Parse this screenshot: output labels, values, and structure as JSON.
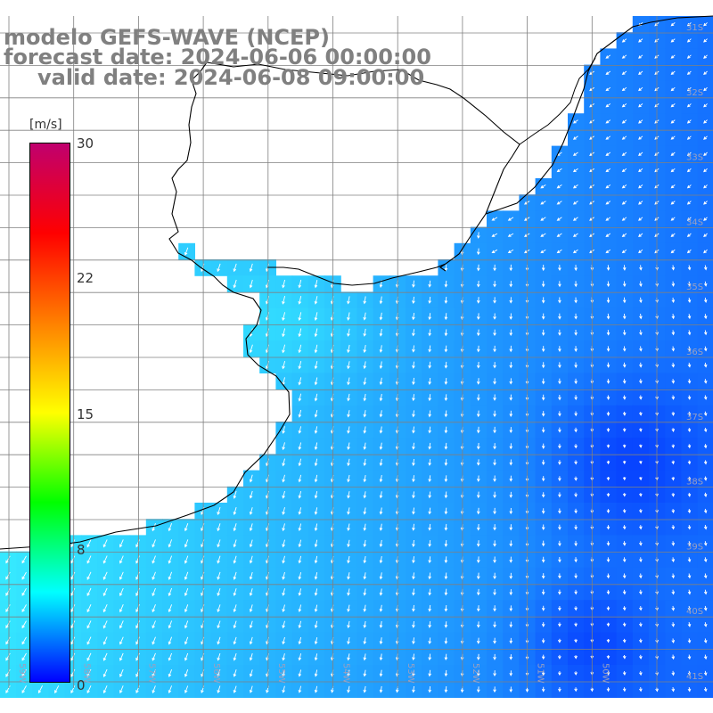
{
  "title": {
    "line1": "modelo GEFS-WAVE (NCEP)",
    "line2": "forecast date: 2024-06-06 00:00:00",
    "line3": "valid date: 2024-06-08 09:00:00"
  },
  "colorbar": {
    "unit": "[m/s]",
    "ticks": [
      "30",
      "22",
      "15",
      "8",
      "0"
    ],
    "tick_values": [
      30,
      22,
      15,
      8,
      0
    ],
    "min": 0,
    "max": 30,
    "stops": [
      "#0000ff",
      "#00ffff",
      "#00ff00",
      "#ffff00",
      "#ff8000",
      "#ff0000",
      "#c0006e"
    ]
  },
  "latitude_labels": [
    "31S",
    "32S",
    "33S",
    "34S",
    "35S",
    "36S",
    "37S",
    "38S",
    "39S",
    "40S",
    "41S"
  ],
  "longitude_labels": [
    "59W",
    "58W",
    "57W",
    "56W",
    "55W",
    "54W",
    "53W",
    "52W",
    "51W",
    "50W"
  ],
  "colors": {
    "land": "#ffffff",
    "coast": "#000000",
    "grid": "#808080",
    "arrow": "#ffffff",
    "title": "#808080"
  }
}
